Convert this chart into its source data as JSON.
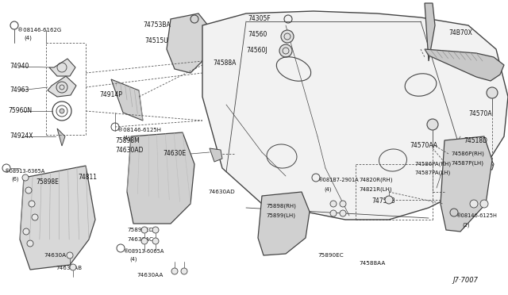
{
  "bg_color": "#ffffff",
  "line_color": "#444444",
  "text_color": "#111111",
  "fig_width": 6.4,
  "fig_height": 3.72,
  "dpi": 100,
  "xlim": [
    0,
    640
  ],
  "ylim": [
    0,
    372
  ]
}
